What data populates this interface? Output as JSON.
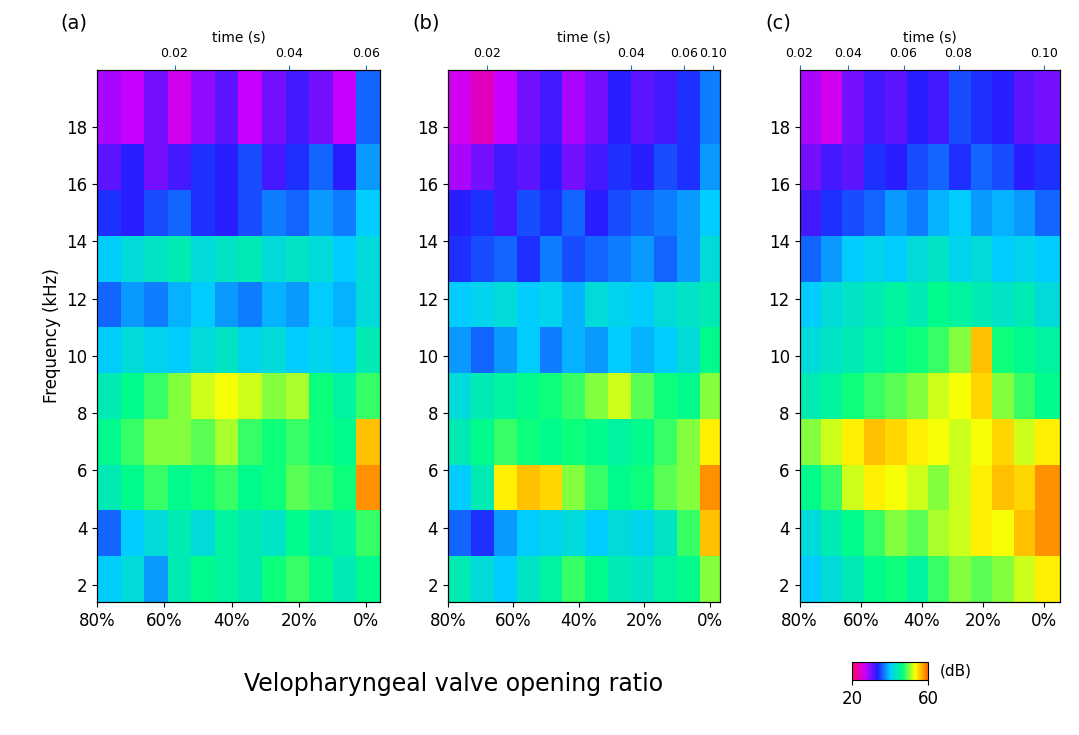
{
  "chart_data": [
    {
      "type": "heatmap",
      "title": "(a)",
      "ylabel": "Frequency (kHz)",
      "x2label": "time (s)",
      "xlim": [
        80,
        -4
      ],
      "ylim": [
        1.4,
        20
      ],
      "xticks": [
        {
          "value": 80,
          "label": "80%"
        },
        {
          "value": 60,
          "label": "60%"
        },
        {
          "value": 40,
          "label": "40%"
        },
        {
          "value": 20,
          "label": "20%"
        },
        {
          "value": 0,
          "label": "0%"
        }
      ],
      "yticks": [
        2,
        4,
        6,
        8,
        10,
        12,
        14,
        16,
        18
      ],
      "time_ticks": [
        {
          "time": 0.02,
          "ratio": 57
        },
        {
          "time": 0.04,
          "ratio": 23
        },
        {
          "time": 0.06,
          "ratio": 0
        }
      ],
      "x_edges": [
        80,
        73,
        66,
        59,
        52,
        45,
        38,
        31,
        24,
        17,
        10,
        3,
        -4
      ],
      "y_edges": [
        1.4,
        3,
        4.6,
        6.2,
        7.8,
        9.4,
        11,
        12.6,
        14.2,
        15.8,
        17.4,
        20
      ],
      "cells": [
        [
          40,
          42,
          38,
          44,
          46,
          45,
          44,
          47,
          48,
          46,
          44,
          46
        ],
        [
          36,
          40,
          42,
          44,
          42,
          45,
          44,
          43,
          46,
          44,
          45,
          48
        ],
        [
          44,
          46,
          48,
          46,
          47,
          48,
          46,
          47,
          49,
          48,
          47,
          58
        ],
        [
          46,
          48,
          50,
          50,
          49,
          51,
          48,
          47,
          48,
          47,
          46,
          56
        ],
        [
          44,
          46,
          48,
          50,
          52,
          53,
          52,
          50,
          51,
          47,
          45,
          48
        ],
        [
          40,
          42,
          41,
          40,
          42,
          43,
          41,
          42,
          40,
          41,
          40,
          44
        ],
        [
          36,
          38,
          37,
          39,
          40,
          38,
          37,
          39,
          38,
          40,
          39,
          42
        ],
        [
          40,
          42,
          43,
          44,
          42,
          43,
          44,
          42,
          43,
          42,
          40,
          42
        ],
        [
          34,
          33,
          35,
          36,
          34,
          33,
          35,
          37,
          36,
          38,
          37,
          40
        ],
        [
          31,
          33,
          30,
          32,
          34,
          33,
          35,
          32,
          34,
          36,
          33,
          38
        ],
        [
          28,
          27,
          30,
          26,
          29,
          31,
          27,
          30,
          32,
          30,
          27,
          36
        ]
      ]
    },
    {
      "type": "heatmap",
      "title": "(b)",
      "x2label": "time (s)",
      "xlim": [
        80,
        -3
      ],
      "ylim": [
        1.4,
        20
      ],
      "xticks": [
        {
          "value": 80,
          "label": "80%"
        },
        {
          "value": 60,
          "label": "60%"
        },
        {
          "value": 40,
          "label": "40%"
        },
        {
          "value": 20,
          "label": "20%"
        },
        {
          "value": 0,
          "label": "0%"
        }
      ],
      "yticks": [
        2,
        4,
        6,
        8,
        10,
        12,
        14,
        16,
        18
      ],
      "time_ticks": [
        {
          "time": 0.02,
          "ratio": 68
        },
        {
          "time": 0.04,
          "ratio": 24
        },
        {
          "time": 0.06,
          "ratio": 8
        },
        {
          "time": 0.1,
          "label": "0.10",
          "ratio": -1
        }
      ],
      "x_edges": [
        80,
        73,
        66,
        59,
        52,
        45,
        38,
        31,
        24,
        17,
        10,
        3,
        -3
      ],
      "y_edges": [
        1.4,
        3,
        4.6,
        6.2,
        7.8,
        9.4,
        11,
        12.6,
        14.2,
        15.8,
        17.4,
        20
      ],
      "cells": [
        [
          44,
          42,
          40,
          43,
          45,
          48,
          46,
          44,
          43,
          45,
          46,
          50
        ],
        [
          36,
          34,
          38,
          40,
          41,
          42,
          40,
          42,
          41,
          43,
          48,
          56
        ],
        [
          40,
          44,
          54,
          56,
          55,
          50,
          48,
          46,
          47,
          49,
          50,
          58
        ],
        [
          44,
          46,
          48,
          47,
          46,
          47,
          46,
          45,
          46,
          48,
          50,
          54
        ],
        [
          42,
          44,
          45,
          46,
          47,
          48,
          50,
          52,
          49,
          47,
          46,
          50
        ],
        [
          38,
          36,
          38,
          40,
          37,
          39,
          38,
          40,
          39,
          40,
          42,
          46
        ],
        [
          40,
          41,
          42,
          40,
          41,
          39,
          42,
          41,
          40,
          42,
          43,
          44
        ],
        [
          34,
          35,
          36,
          34,
          37,
          35,
          36,
          37,
          38,
          36,
          38,
          42
        ],
        [
          33,
          34,
          32,
          35,
          34,
          36,
          33,
          35,
          36,
          37,
          38,
          40
        ],
        [
          28,
          30,
          32,
          31,
          33,
          30,
          32,
          34,
          33,
          35,
          34,
          38
        ],
        [
          26,
          24,
          27,
          30,
          32,
          28,
          30,
          33,
          31,
          32,
          34,
          37
        ]
      ]
    },
    {
      "type": "heatmap",
      "title": "(c)",
      "x2label": "time (s)",
      "xlim": [
        80,
        -5
      ],
      "ylim": [
        1.4,
        20
      ],
      "xticks": [
        {
          "value": 80,
          "label": "80%"
        },
        {
          "value": 60,
          "label": "60%"
        },
        {
          "value": 40,
          "label": "40%"
        },
        {
          "value": 20,
          "label": "20%"
        },
        {
          "value": 0,
          "label": "0%"
        }
      ],
      "yticks": [
        2,
        4,
        6,
        8,
        10,
        12,
        14,
        16,
        18
      ],
      "time_ticks": [
        {
          "time": 0.02,
          "ratio": 80
        },
        {
          "time": 0.04,
          "ratio": 64
        },
        {
          "time": 0.06,
          "ratio": 46
        },
        {
          "time": 0.08,
          "ratio": 28
        },
        {
          "time": 0.1,
          "label": "0.10",
          "ratio": 0
        }
      ],
      "x_edges": [
        80,
        73,
        66,
        59,
        52,
        45,
        38,
        31,
        24,
        17,
        10,
        3,
        -5
      ],
      "y_edges": [
        1.4,
        3,
        4.6,
        6.2,
        7.8,
        9.4,
        11,
        12.6,
        14.2,
        15.8,
        17.4,
        20
      ],
      "cells": [
        [
          40,
          42,
          44,
          46,
          47,
          45,
          48,
          50,
          49,
          50,
          52,
          54
        ],
        [
          42,
          44,
          46,
          48,
          50,
          49,
          51,
          52,
          54,
          53,
          56,
          58
        ],
        [
          46,
          48,
          52,
          54,
          53,
          52,
          50,
          52,
          54,
          56,
          55,
          58
        ],
        [
          50,
          52,
          54,
          56,
          55,
          54,
          53,
          52,
          53,
          55,
          52,
          54
        ],
        [
          44,
          45,
          47,
          48,
          49,
          50,
          52,
          53,
          55,
          50,
          48,
          46
        ],
        [
          42,
          43,
          44,
          45,
          46,
          47,
          48,
          50,
          56,
          47,
          46,
          45
        ],
        [
          40,
          42,
          43,
          44,
          45,
          44,
          46,
          45,
          44,
          43,
          44,
          42
        ],
        [
          36,
          38,
          40,
          41,
          40,
          42,
          43,
          41,
          42,
          40,
          41,
          40
        ],
        [
          32,
          34,
          35,
          36,
          38,
          37,
          39,
          40,
          38,
          39,
          38,
          36
        ],
        [
          30,
          32,
          31,
          34,
          33,
          35,
          36,
          34,
          36,
          35,
          33,
          34
        ],
        [
          28,
          26,
          30,
          32,
          31,
          33,
          32,
          35,
          34,
          33,
          31,
          30
        ]
      ]
    }
  ],
  "shared": {
    "xlabel": "Velopharyngeal valve opening ratio",
    "colorbar": {
      "label": "(dB)",
      "range": [
        20,
        60
      ],
      "ticks": [
        20,
        60
      ]
    }
  }
}
